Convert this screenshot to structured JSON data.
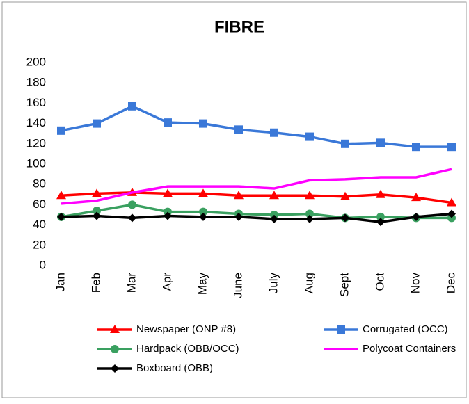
{
  "chart_data": {
    "type": "line",
    "title": "FIBRE",
    "categories": [
      "Jan",
      "Feb",
      "Mar",
      "Apr",
      "May",
      "June",
      "July",
      "Aug",
      "Sept",
      "Oct",
      "Nov",
      "Dec"
    ],
    "ylim": [
      0,
      200
    ],
    "yticks": [
      0,
      20,
      40,
      60,
      80,
      100,
      120,
      140,
      160,
      180,
      200
    ],
    "series": [
      {
        "name": "Newspaper (ONP #8)",
        "color": "#ff0000",
        "marker": "triangle",
        "values": [
          69,
          71,
          72,
          71,
          71,
          69,
          69,
          69,
          68,
          70,
          67,
          62
        ]
      },
      {
        "name": "Corrugated (OCC)",
        "color": "#3a78d8",
        "marker": "square",
        "values": [
          133,
          140,
          157,
          141,
          140,
          134,
          131,
          127,
          120,
          121,
          117,
          117
        ]
      },
      {
        "name": "Hardpack (OBB/OCC)",
        "color": "#3aa060",
        "marker": "circle",
        "values": [
          48,
          54,
          60,
          53,
          53,
          51,
          50,
          51,
          47,
          48,
          47,
          47
        ]
      },
      {
        "name": "Polycoat Containers",
        "color": "#ff00ff",
        "marker": "none",
        "values": [
          61,
          64,
          72,
          78,
          78,
          78,
          76,
          84,
          85,
          87,
          87,
          95
        ]
      },
      {
        "name": "Boxboard (OBB)",
        "color": "#000000",
        "marker": "diamond",
        "values": [
          48,
          49,
          47,
          49,
          48,
          48,
          46,
          46,
          47,
          43,
          48,
          51
        ]
      }
    ]
  }
}
